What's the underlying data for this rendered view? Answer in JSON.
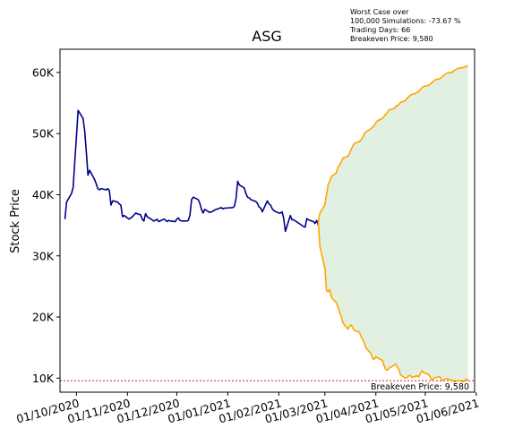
{
  "chart_data": {
    "type": "line",
    "title": "ASG",
    "xlabel": "",
    "ylabel": "Stock Price",
    "x_axis": "date",
    "xlim": [
      "2020-09-21",
      "2021-05-31"
    ],
    "ylim": [
      7700,
      63800
    ],
    "y_ticks": [
      10000,
      20000,
      30000,
      40000,
      50000,
      60000
    ],
    "y_tick_labels": [
      "10K",
      "20K",
      "30K",
      "40K",
      "50K",
      "60K"
    ],
    "x_ticks": [
      "2020-10-01",
      "2020-11-01",
      "2020-12-01",
      "2021-01-01",
      "2021-02-01",
      "2021-03-01",
      "2021-04-01",
      "2021-05-01",
      "2021-06-01"
    ],
    "x_tick_labels": [
      "01/10/2020",
      "01/11/2020",
      "01/12/2020",
      "01/01/2021",
      "01/02/2021",
      "01/03/2021",
      "01/04/2021",
      "01/05/2021",
      "01/06/2021"
    ],
    "grid": false,
    "legend": "none",
    "annotations": {
      "simulation_note": [
        "Worst Case over",
        "100,000 Simulations: -73.67 %",
        "Trading Days: 66",
        "Breakeven Price: 9,580"
      ],
      "breakeven_label": "Breakeven Price: 9,580",
      "breakeven_value": 9580
    },
    "colors": {
      "history": "#00008b",
      "projection": "#ffa500",
      "fill": "#e2f0e2",
      "breakeven": "#cc0000"
    },
    "series": [
      {
        "role": "history",
        "x": [
          "2020-09-24",
          "2020-09-25",
          "2020-09-28",
          "2020-09-29",
          "2020-09-30",
          "2020-10-01",
          "2020-10-02",
          "2020-10-05",
          "2020-10-06",
          "2020-10-07",
          "2020-10-08",
          "2020-10-09",
          "2020-10-12",
          "2020-10-13",
          "2020-10-14",
          "2020-10-15",
          "2020-10-16",
          "2020-10-19",
          "2020-10-20",
          "2020-10-21",
          "2020-10-22",
          "2020-10-23",
          "2020-10-26",
          "2020-10-27",
          "2020-10-28",
          "2020-10-29",
          "2020-10-30",
          "2020-11-02",
          "2020-11-03",
          "2020-11-04",
          "2020-11-05",
          "2020-11-06",
          "2020-11-09",
          "2020-11-10",
          "2020-11-11",
          "2020-11-12",
          "2020-11-13",
          "2020-11-16",
          "2020-11-17",
          "2020-11-18",
          "2020-11-19",
          "2020-11-20",
          "2020-11-23",
          "2020-11-24",
          "2020-11-25",
          "2020-11-26",
          "2020-11-27",
          "2020-11-30",
          "2020-12-01",
          "2020-12-02",
          "2020-12-03",
          "2020-12-04",
          "2020-12-07",
          "2020-12-08",
          "2020-12-09",
          "2020-12-10",
          "2020-12-11",
          "2020-12-14",
          "2020-12-15",
          "2020-12-16",
          "2020-12-17",
          "2020-12-18",
          "2020-12-21",
          "2020-12-22",
          "2020-12-23",
          "2020-12-24",
          "2020-12-28",
          "2020-12-29",
          "2020-12-30",
          "2021-01-04",
          "2021-01-05",
          "2021-01-06",
          "2021-01-07",
          "2021-01-08",
          "2021-01-11",
          "2021-01-12",
          "2021-01-13",
          "2021-01-14",
          "2021-01-15",
          "2021-01-18",
          "2021-01-19",
          "2021-01-20",
          "2021-01-21",
          "2021-01-22",
          "2021-01-25",
          "2021-01-26",
          "2021-01-27",
          "2021-01-28",
          "2021-01-29",
          "2021-02-01",
          "2021-02-02",
          "2021-02-03",
          "2021-02-04",
          "2021-02-05",
          "2021-02-08",
          "2021-02-09",
          "2021-02-10",
          "2021-02-15",
          "2021-02-16",
          "2021-02-17",
          "2021-02-18",
          "2021-02-19",
          "2021-02-22",
          "2021-02-23",
          "2021-02-24",
          "2021-02-25"
        ],
        "y": [
          36000,
          38800,
          40200,
          41200,
          45500,
          49500,
          53800,
          52500,
          50500,
          47000,
          43200,
          44000,
          42500,
          41800,
          41000,
          40800,
          41000,
          40800,
          41000,
          40700,
          38300,
          39000,
          38800,
          38500,
          38300,
          36400,
          36600,
          36000,
          36200,
          36400,
          36700,
          37000,
          36700,
          36000,
          35700,
          36900,
          36400,
          35900,
          35700,
          35800,
          36000,
          35600,
          36000,
          35900,
          35600,
          35800,
          35700,
          35600,
          36000,
          36200,
          35800,
          35700,
          35700,
          35800,
          36700,
          39200,
          39600,
          39200,
          38600,
          37600,
          37000,
          37600,
          37100,
          37200,
          37300,
          37500,
          37900,
          37700,
          37800,
          37900,
          38100,
          39400,
          42200,
          41600,
          41100,
          40200,
          39600,
          39500,
          39200,
          38900,
          38600,
          38000,
          37800,
          37200,
          39000,
          38500,
          38300,
          37700,
          37400,
          37000,
          37000,
          37200,
          36100,
          34000,
          36600,
          35900,
          35900,
          35000,
          34800,
          34700,
          36100,
          35900,
          35600,
          35300,
          35800,
          35000
        ]
      },
      {
        "role": "projection_best",
        "x": [
          "2021-02-25",
          "2021-02-26",
          "2021-03-01",
          "2021-03-02",
          "2021-03-03",
          "2021-03-04",
          "2021-03-05",
          "2021-03-08",
          "2021-03-09",
          "2021-03-10",
          "2021-03-11",
          "2021-03-12",
          "2021-03-15",
          "2021-03-16",
          "2021-03-17",
          "2021-03-18",
          "2021-03-19",
          "2021-03-22",
          "2021-03-23",
          "2021-03-24",
          "2021-03-25",
          "2021-03-26",
          "2021-03-29",
          "2021-03-30",
          "2021-03-31",
          "2021-04-01",
          "2021-04-02",
          "2021-04-05",
          "2021-04-06",
          "2021-04-07",
          "2021-04-08",
          "2021-04-09",
          "2021-04-12",
          "2021-04-13",
          "2021-04-14",
          "2021-04-15",
          "2021-04-16",
          "2021-04-19",
          "2021-04-20",
          "2021-04-21",
          "2021-04-22",
          "2021-04-23",
          "2021-04-26",
          "2021-04-27",
          "2021-04-28",
          "2021-04-29",
          "2021-04-30",
          "2021-05-03",
          "2021-05-04",
          "2021-05-05",
          "2021-05-06",
          "2021-05-07",
          "2021-05-10",
          "2021-05-11",
          "2021-05-12",
          "2021-05-13",
          "2021-05-14",
          "2021-05-17",
          "2021-05-18",
          "2021-05-19",
          "2021-05-20",
          "2021-05-21",
          "2021-05-24",
          "2021-05-25",
          "2021-05-26",
          "2021-05-27"
        ],
        "y": [
          35500,
          37000,
          38400,
          40000,
          41700,
          42200,
          43000,
          43600,
          44600,
          44800,
          45400,
          46000,
          46300,
          46800,
          47400,
          48000,
          48400,
          48700,
          49000,
          49400,
          50000,
          50300,
          50800,
          51100,
          51300,
          51800,
          52100,
          52500,
          52800,
          53200,
          53400,
          53900,
          54100,
          54400,
          54600,
          54800,
          55100,
          55400,
          55800,
          56000,
          56300,
          56400,
          56700,
          56900,
          57200,
          57500,
          57700,
          57900,
          58100,
          58300,
          58600,
          58800,
          59000,
          59200,
          59500,
          59700,
          59900,
          60000,
          60200,
          60400,
          60500,
          60700,
          60800,
          60900,
          61000,
          61100
        ]
      },
      {
        "role": "projection_worst",
        "x": [
          "2021-02-25",
          "2021-02-26",
          "2021-03-01",
          "2021-03-02",
          "2021-03-03",
          "2021-03-04",
          "2021-03-05",
          "2021-03-08",
          "2021-03-09",
          "2021-03-10",
          "2021-03-11",
          "2021-03-12",
          "2021-03-15",
          "2021-03-16",
          "2021-03-17",
          "2021-03-18",
          "2021-03-19",
          "2021-03-22",
          "2021-03-23",
          "2021-03-24",
          "2021-03-25",
          "2021-03-26",
          "2021-03-29",
          "2021-03-30",
          "2021-03-31",
          "2021-04-01",
          "2021-04-02",
          "2021-04-05",
          "2021-04-06",
          "2021-04-07",
          "2021-04-08",
          "2021-04-09",
          "2021-04-12",
          "2021-04-13",
          "2021-04-14",
          "2021-04-15",
          "2021-04-16",
          "2021-04-19",
          "2021-04-20",
          "2021-04-21",
          "2021-04-22",
          "2021-04-23",
          "2021-04-26",
          "2021-04-27",
          "2021-04-28",
          "2021-04-29",
          "2021-04-30",
          "2021-05-03",
          "2021-05-04",
          "2021-05-05",
          "2021-05-06",
          "2021-05-07",
          "2021-05-10",
          "2021-05-11",
          "2021-05-12",
          "2021-05-13",
          "2021-05-14",
          "2021-05-17",
          "2021-05-18",
          "2021-05-19",
          "2021-05-20",
          "2021-05-21",
          "2021-05-24",
          "2021-05-25",
          "2021-05-26",
          "2021-05-27"
        ],
        "y": [
          35500,
          31500,
          28000,
          24300,
          24100,
          24500,
          23200,
          22300,
          21600,
          20700,
          20100,
          19000,
          18000,
          18500,
          18700,
          18200,
          17800,
          17500,
          16800,
          16300,
          15700,
          14900,
          14000,
          13200,
          13100,
          13500,
          13300,
          12900,
          12000,
          11400,
          11300,
          11600,
          12100,
          12300,
          11800,
          11400,
          10500,
          10000,
          10100,
          10400,
          10400,
          10100,
          10400,
          10200,
          10700,
          11200,
          10900,
          10600,
          10200,
          9700,
          9900,
          10100,
          10200,
          9700,
          9600,
          9800,
          9900,
          9700,
          9500,
          9400,
          9500,
          9600,
          9400,
          9500,
          9900,
          9600
        ]
      }
    ]
  }
}
